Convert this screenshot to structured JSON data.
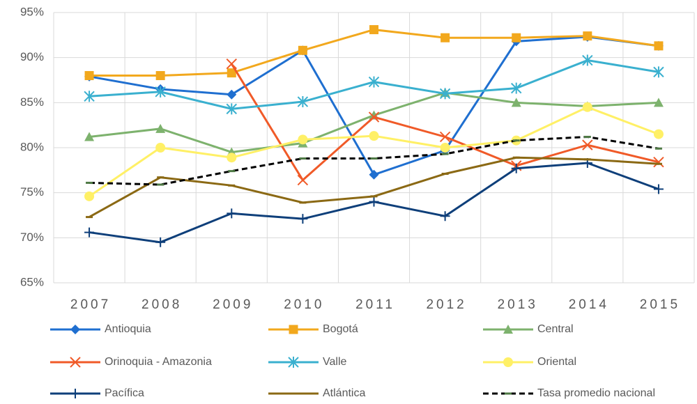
{
  "chart_data": {
    "type": "line",
    "categories": [
      "2007",
      "2008",
      "2009",
      "2010",
      "2011",
      "2012",
      "2013",
      "2014",
      "2015"
    ],
    "ylim": [
      65,
      95
    ],
    "yticks": [
      {
        "value": 65,
        "label": "65%"
      },
      {
        "value": 70,
        "label": "70%"
      },
      {
        "value": 75,
        "label": "75%"
      },
      {
        "value": 80,
        "label": "80%"
      },
      {
        "value": 85,
        "label": "85%"
      },
      {
        "value": 90,
        "label": "90%"
      },
      {
        "value": 95,
        "label": "95%"
      }
    ],
    "grid": true,
    "legend": "bottom",
    "series": [
      {
        "name": "Antioquia",
        "color": "#1f6fd0",
        "marker": "diamond",
        "values": [
          87.9,
          86.5,
          85.9,
          90.8,
          77.0,
          79.7,
          91.8,
          92.3,
          91.3
        ]
      },
      {
        "name": "Bogotá",
        "color": "#f2a81d",
        "marker": "square",
        "values": [
          88.0,
          88.0,
          88.3,
          90.8,
          93.1,
          92.2,
          92.2,
          92.4,
          91.3
        ]
      },
      {
        "name": "Central",
        "color": "#7db26d",
        "marker": "triangle",
        "values": [
          81.2,
          82.1,
          79.5,
          80.5,
          83.6,
          86.1,
          85.0,
          84.6,
          85.0
        ]
      },
      {
        "name": "Orinoquia - Amazonia",
        "color": "#f05a28",
        "marker": "x",
        "values": [
          null,
          null,
          89.3,
          76.4,
          83.4,
          81.2,
          78.0,
          80.3,
          78.4
        ]
      },
      {
        "name": "Valle",
        "color": "#3ab0cf",
        "marker": "star",
        "values": [
          85.7,
          86.2,
          84.3,
          85.1,
          87.3,
          86.0,
          86.6,
          89.7,
          88.4
        ]
      },
      {
        "name": "Oriental",
        "color": "#fff066",
        "marker": "circle",
        "values": [
          74.6,
          80.0,
          78.9,
          80.9,
          81.3,
          80.0,
          80.8,
          84.5,
          81.5
        ]
      },
      {
        "name": "Pacífica",
        "color": "#0e3f7a",
        "marker": "plus",
        "values": [
          70.6,
          69.5,
          72.7,
          72.1,
          74.0,
          72.4,
          77.7,
          78.3,
          75.4
        ]
      },
      {
        "name": "Atlántica",
        "color": "#8b6914",
        "marker": "dash",
        "values": [
          72.3,
          76.7,
          75.8,
          73.9,
          74.6,
          77.1,
          78.9,
          78.7,
          78.2
        ]
      },
      {
        "name": "Tasa promedio nacional",
        "color": "#000000",
        "dashed": true,
        "marker": "dash",
        "marker_color": "#4f7a45",
        "values": [
          76.1,
          75.9,
          77.4,
          78.8,
          78.8,
          79.3,
          80.8,
          81.2,
          79.9
        ]
      }
    ]
  }
}
